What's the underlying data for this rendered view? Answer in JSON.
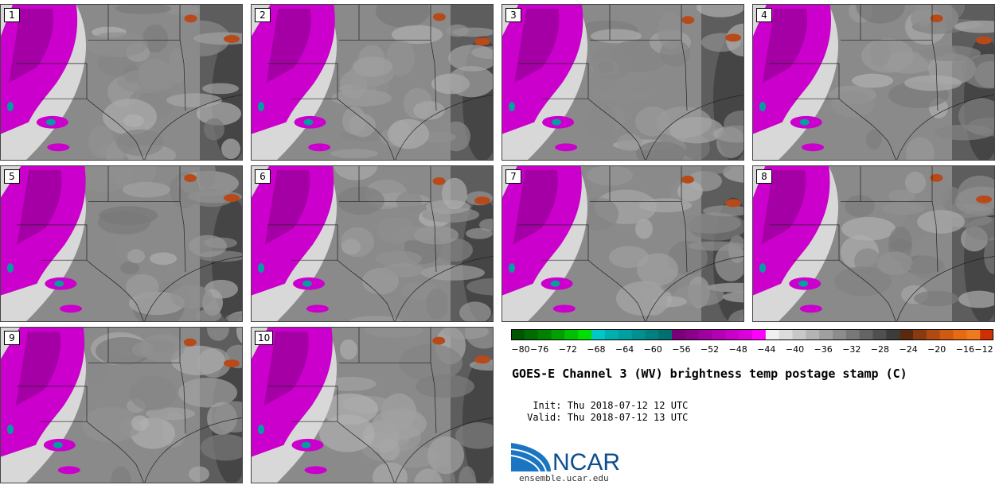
{
  "panels": [
    "1",
    "2",
    "3",
    "4",
    "5",
    "6",
    "7",
    "8",
    "9",
    "10"
  ],
  "colorbar": {
    "tick_labels": [
      "−80",
      "−76",
      "−72",
      "−68",
      "−64",
      "−60",
      "−56",
      "−52",
      "−48",
      "−44",
      "−40",
      "−36",
      "−32",
      "−28",
      "−24",
      "−20",
      "−16",
      "−12"
    ],
    "colors": [
      "#005500",
      "#006b00",
      "#008200",
      "#00a000",
      "#00c000",
      "#00e000",
      "#00c8c8",
      "#00b0b0",
      "#00a0a0",
      "#009090",
      "#008080",
      "#007070",
      "#7a007a",
      "#8a008a",
      "#a000a0",
      "#b400b4",
      "#c800c8",
      "#dc00dc",
      "#ff00ff",
      "#f0f0f0",
      "#dcdcdc",
      "#c8c8c8",
      "#b4b4b4",
      "#a0a0a0",
      "#8c8c8c",
      "#787878",
      "#646464",
      "#505050",
      "#3c3c3c",
      "#5a2a10",
      "#8a3a10",
      "#b04a10",
      "#d05a10",
      "#e86a10",
      "#f07a20",
      "#d03000"
    ]
  },
  "title": "GOES-E Channel 3 (WV) brightness temp postage stamp (C)",
  "init": {
    "label": "Init:",
    "value": "Thu 2018-07-12 12 UTC"
  },
  "valid": {
    "label": "Valid:",
    "value": "Thu 2018-07-12 13 UTC"
  },
  "logo_text": "NCAR",
  "site": "ensemble.ucar.edu"
}
